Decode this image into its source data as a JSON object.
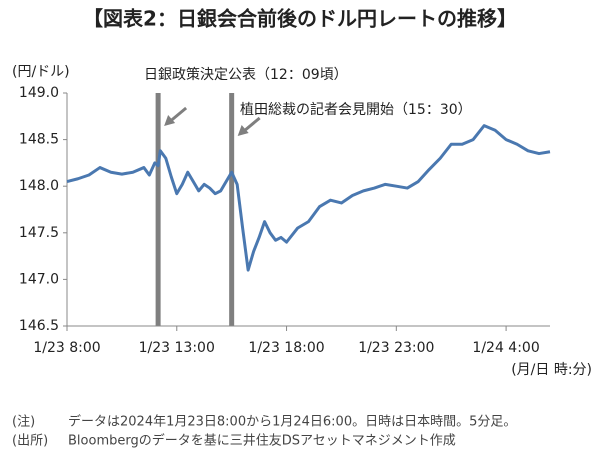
{
  "chart_data": {
    "type": "line",
    "title": "【図表2：日銀会合前後のドル円レートの推移】",
    "y_label": "(円/ドル)",
    "x_label": "(月/日 時:分)",
    "x": [
      "1/23 8:00",
      "1/23 8:30",
      "1/23 9:00",
      "1/23 9:30",
      "1/23 10:00",
      "1/23 10:30",
      "1/23 11:00",
      "1/23 11:30",
      "1/23 11:45",
      "1/23 12:00",
      "1/23 12:09",
      "1/23 12:15",
      "1/23 12:30",
      "1/23 12:45",
      "1/23 13:00",
      "1/23 13:15",
      "1/23 13:30",
      "1/23 13:45",
      "1/23 14:00",
      "1/23 14:15",
      "1/23 14:30",
      "1/23 14:45",
      "1/23 15:00",
      "1/23 15:15",
      "1/23 15:30",
      "1/23 15:45",
      "1/23 16:00",
      "1/23 16:15",
      "1/23 16:30",
      "1/23 16:45",
      "1/23 17:00",
      "1/23 17:15",
      "1/23 17:30",
      "1/23 17:45",
      "1/23 18:00",
      "1/23 18:30",
      "1/23 19:00",
      "1/23 19:30",
      "1/23 20:00",
      "1/23 20:30",
      "1/23 21:00",
      "1/23 21:30",
      "1/23 22:00",
      "1/23 22:30",
      "1/23 23:00",
      "1/23 23:30",
      "1/24 0:00",
      "1/24 0:30",
      "1/24 1:00",
      "1/24 1:30",
      "1/24 2:00",
      "1/24 2:30",
      "1/24 3:00",
      "1/24 3:30",
      "1/24 4:00",
      "1/24 4:30",
      "1/24 5:00",
      "1/24 5:30",
      "1/24 6:00"
    ],
    "series": [
      {
        "name": "ドル円",
        "color": "#4a78b0",
        "values": [
          148.05,
          148.08,
          148.12,
          148.2,
          148.15,
          148.13,
          148.15,
          148.2,
          148.12,
          148.25,
          148.22,
          148.38,
          148.3,
          148.1,
          147.92,
          148.02,
          148.15,
          148.05,
          147.95,
          148.02,
          147.98,
          147.92,
          147.95,
          148.05,
          148.15,
          148.02,
          147.55,
          147.1,
          147.3,
          147.45,
          147.62,
          147.5,
          147.42,
          147.45,
          147.4,
          147.55,
          147.62,
          147.78,
          147.85,
          147.82,
          147.9,
          147.95,
          147.98,
          148.02,
          148.0,
          147.98,
          148.05,
          148.18,
          148.3,
          148.45,
          148.45,
          148.5,
          148.65,
          148.6,
          148.5,
          148.45,
          148.38,
          148.35,
          148.37
        ]
      }
    ],
    "xlim": [
      "1/23 8:00",
      "1/24 6:00"
    ],
    "xticks": [
      "1/23 8:00",
      "1/23 13:00",
      "1/23 18:00",
      "1/23 23:00",
      "1/24 4:00"
    ],
    "ylim": [
      146.5,
      149.0
    ],
    "yticks": [
      {
        "value": 146.5,
        "label": "146.5"
      },
      {
        "value": 147,
        "label": "147.0"
      },
      {
        "value": 147.5,
        "label": "147.5"
      },
      {
        "value": 148,
        "label": "148.0"
      },
      {
        "value": 148.5,
        "label": "148.5"
      },
      {
        "value": 149,
        "label": "149.0"
      }
    ],
    "grid": false,
    "events": [
      {
        "x": "1/23 12:09",
        "label": "日銀政策決定公表（12：09頃）",
        "color": "#7f7f7f"
      },
      {
        "x": "1/23 15:30",
        "label": "植田総裁の記者会見開始（15：30）",
        "color": "#7f7f7f"
      }
    ],
    "notes": [
      {
        "tag": "(注)",
        "text": "データは2024年1月23日8:00から1月24日6:00。日時は日本時間。5分足。"
      },
      {
        "tag": "(出所)",
        "text": "Bloombergのデータを基に三井住友DSアセットマネジメント作成"
      }
    ]
  }
}
